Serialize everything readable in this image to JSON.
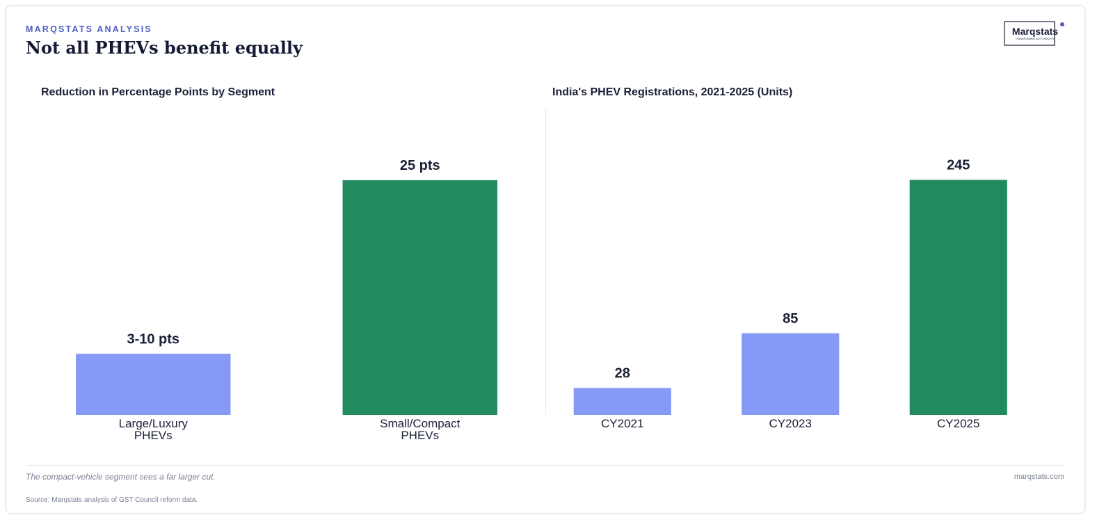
{
  "header": {
    "kicker": "MARQSTATS ANALYSIS",
    "title": "Not all PHEVs benefit equally"
  },
  "logo": {
    "name": "Marqstats",
    "tagline": "TRANSFORMING AUTO INSIGHTS"
  },
  "chart_data": [
    {
      "type": "bar",
      "title": "Reduction in Percentage Points by Segment",
      "categories": [
        "Large/Luxury PHEVs",
        "Small/Compact PHEVs"
      ],
      "values": [
        6.5,
        25
      ],
      "value_labels": [
        "3-10 pts",
        "25 pts"
      ],
      "colors": [
        "#8599f5",
        "#218a5e"
      ],
      "ylim": [
        0,
        32.7
      ]
    },
    {
      "type": "bar",
      "title": "India's PHEV Registrations, 2021-2025 (Units)",
      "categories": [
        "CY2021",
        "CY2023",
        "CY2025"
      ],
      "values": [
        28,
        85,
        245
      ],
      "colors": [
        "#8599f5",
        "#8599f5",
        "#218a5e"
      ],
      "ylim": [
        0,
        320
      ]
    }
  ],
  "footer": {
    "note": "The compact-vehicle segment sees a far larger cut.",
    "site": "marqstats.com",
    "source": "Source: Marqstats analysis of GST Council reform data."
  }
}
